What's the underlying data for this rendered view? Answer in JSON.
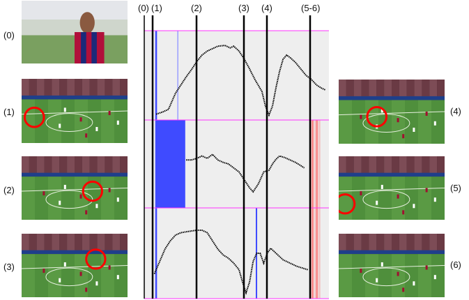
{
  "thumbnails": {
    "left": [
      {
        "label": "(0)",
        "kind": "closeup"
      },
      {
        "label": "(1)",
        "kind": "field"
      },
      {
        "label": "(2)",
        "kind": "field"
      },
      {
        "label": "(3)",
        "kind": "field"
      }
    ],
    "right": [
      {
        "label": "(4)",
        "kind": "field"
      },
      {
        "label": "(5)",
        "kind": "field"
      },
      {
        "label": "(6)",
        "kind": "field"
      }
    ]
  },
  "markers": [
    "(0)",
    "(1)",
    "(2)",
    "(3)",
    "(4)",
    "(5-6)"
  ],
  "colors": {
    "panel_bg": "#eeeeee",
    "panel_border": "#ff33ff",
    "blue_band": "#3f4bff",
    "red_band": "#ff5252",
    "curve": "#000000",
    "highlight_circle": "#ff0000",
    "pitch": "#4a8a3a"
  },
  "chart_data": {
    "type": "line",
    "x_range": [
      0,
      100
    ],
    "series": [
      {
        "points": [
          [
            2,
            0.98
          ],
          [
            6,
            0.95
          ],
          [
            9,
            0.92
          ],
          [
            11,
            0.82
          ],
          [
            13,
            0.72
          ],
          [
            16,
            0.62
          ],
          [
            19,
            0.52
          ],
          [
            22,
            0.43
          ],
          [
            25,
            0.33
          ],
          [
            28,
            0.25
          ],
          [
            31,
            0.2
          ],
          [
            34,
            0.17
          ],
          [
            37,
            0.14
          ],
          [
            41,
            0.13
          ],
          [
            44,
            0.16
          ],
          [
            46,
            0.14
          ],
          [
            49,
            0.2
          ],
          [
            52,
            0.3
          ],
          [
            55,
            0.42
          ],
          [
            58,
            0.55
          ],
          [
            62,
            0.7
          ],
          [
            64,
            0.88
          ],
          [
            66,
            0.99
          ],
          [
            68,
            0.88
          ],
          [
            70,
            0.65
          ],
          [
            72,
            0.45
          ],
          [
            74,
            0.3
          ],
          [
            76,
            0.25
          ],
          [
            78,
            0.28
          ],
          [
            81,
            0.34
          ],
          [
            84,
            0.42
          ],
          [
            87,
            0.5
          ],
          [
            90,
            0.55
          ],
          [
            93,
            0.62
          ],
          [
            96,
            0.66
          ],
          [
            98,
            0.68
          ]
        ],
        "bands_blue": [
          [
            1.5,
            2.5
          ]
        ],
        "lines_blue": [
          [
            14,
            14.6
          ]
        ],
        "bands_red": []
      },
      {
        "points": [
          [
            19,
            0.45
          ],
          [
            22,
            0.45
          ],
          [
            25,
            0.43
          ],
          [
            28,
            0.4
          ],
          [
            31,
            0.43
          ],
          [
            34,
            0.38
          ],
          [
            37,
            0.45
          ],
          [
            40,
            0.48
          ],
          [
            43,
            0.5
          ],
          [
            46,
            0.55
          ],
          [
            49,
            0.6
          ],
          [
            52,
            0.7
          ],
          [
            55,
            0.8
          ],
          [
            57,
            0.85
          ],
          [
            60,
            0.75
          ],
          [
            63,
            0.6
          ],
          [
            66,
            0.58
          ],
          [
            68,
            0.5
          ],
          [
            70,
            0.44
          ],
          [
            72,
            0.4
          ],
          [
            75,
            0.42
          ],
          [
            78,
            0.45
          ],
          [
            81,
            0.48
          ],
          [
            84,
            0.52
          ],
          [
            86,
            0.55
          ]
        ],
        "bands_blue": [
          [
            1.5,
            18.5
          ]
        ],
        "lines_blue": [],
        "bands_red": [
          [
            89,
            95
          ]
        ]
      },
      {
        "points": [
          [
            1,
            0.75
          ],
          [
            4,
            0.6
          ],
          [
            7,
            0.45
          ],
          [
            10,
            0.35
          ],
          [
            13,
            0.28
          ],
          [
            16,
            0.25
          ],
          [
            19,
            0.24
          ],
          [
            22,
            0.23
          ],
          [
            25,
            0.22
          ],
          [
            28,
            0.22
          ],
          [
            31,
            0.25
          ],
          [
            34,
            0.35
          ],
          [
            37,
            0.45
          ],
          [
            40,
            0.52
          ],
          [
            43,
            0.56
          ],
          [
            46,
            0.62
          ],
          [
            49,
            0.7
          ],
          [
            51,
            0.85
          ],
          [
            53,
            0.98
          ],
          [
            55,
            0.85
          ],
          [
            57,
            0.6
          ],
          [
            59,
            0.5
          ],
          [
            61,
            0.5
          ],
          [
            63,
            0.62
          ],
          [
            65,
            0.5
          ],
          [
            67,
            0.44
          ],
          [
            70,
            0.5
          ],
          [
            74,
            0.58
          ],
          [
            78,
            0.62
          ],
          [
            82,
            0.66
          ],
          [
            85,
            0.68
          ],
          [
            88,
            0.7
          ]
        ],
        "bands_blue": [
          [
            1.5,
            2.5
          ]
        ],
        "lines_blue": [
          [
            58.5,
            59.3
          ]
        ],
        "bands_red": [
          [
            89,
            95
          ]
        ]
      }
    ],
    "vertical_markers_x": [
      1.5,
      23,
      50.5,
      60.5,
      88.5
    ]
  }
}
